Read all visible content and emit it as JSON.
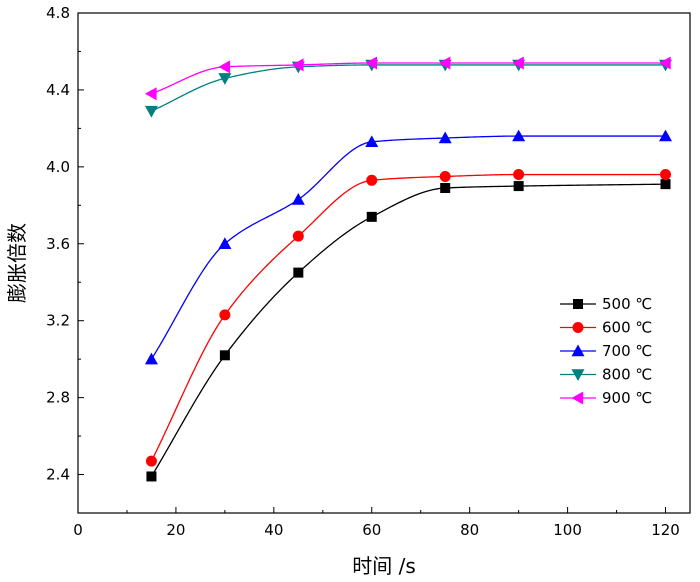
{
  "chart_data": {
    "type": "scatter",
    "xlabel": "时间  /s",
    "ylabel": "膨胀倍数",
    "xlim": [
      0,
      125
    ],
    "ylim": [
      2.2,
      4.8
    ],
    "xticks": [
      0,
      20,
      40,
      60,
      80,
      100,
      120
    ],
    "yticks": [
      2.4,
      2.8,
      3.2,
      3.6,
      4.0,
      4.4,
      4.8
    ],
    "tick_labels_x": [
      "0",
      "20",
      "40",
      "60",
      "80",
      "100",
      "120"
    ],
    "tick_labels_y": [
      "2.4",
      "2.8",
      "3.2",
      "3.6",
      "4.0",
      "4.4",
      "4.8"
    ],
    "grid": false,
    "fit_lines": true,
    "legend_position": "right",
    "x": [
      15,
      30,
      45,
      60,
      75,
      90,
      120
    ],
    "series": [
      {
        "name": "500 ℃",
        "marker": "square",
        "color": "#000000",
        "values": [
          2.39,
          3.02,
          3.45,
          3.74,
          3.89,
          3.9,
          3.91
        ]
      },
      {
        "name": "600 ℃",
        "marker": "circle",
        "color": "#ff0000",
        "values": [
          2.47,
          3.23,
          3.64,
          3.93,
          3.95,
          3.96,
          3.96
        ]
      },
      {
        "name": "700 ℃",
        "marker": "triangle-up",
        "color": "#0000ff",
        "values": [
          3.0,
          3.6,
          3.83,
          4.13,
          4.15,
          4.16,
          4.16
        ]
      },
      {
        "name": "800 ℃",
        "marker": "triangle-down",
        "color": "#008080",
        "values": [
          4.29,
          4.46,
          4.52,
          4.53,
          4.53,
          4.53,
          4.53
        ]
      },
      {
        "name": "900 ℃",
        "marker": "triangle-left",
        "color": "#ff00ff",
        "values": [
          4.38,
          4.52,
          4.53,
          4.54,
          4.54,
          4.54,
          4.54
        ]
      }
    ]
  }
}
